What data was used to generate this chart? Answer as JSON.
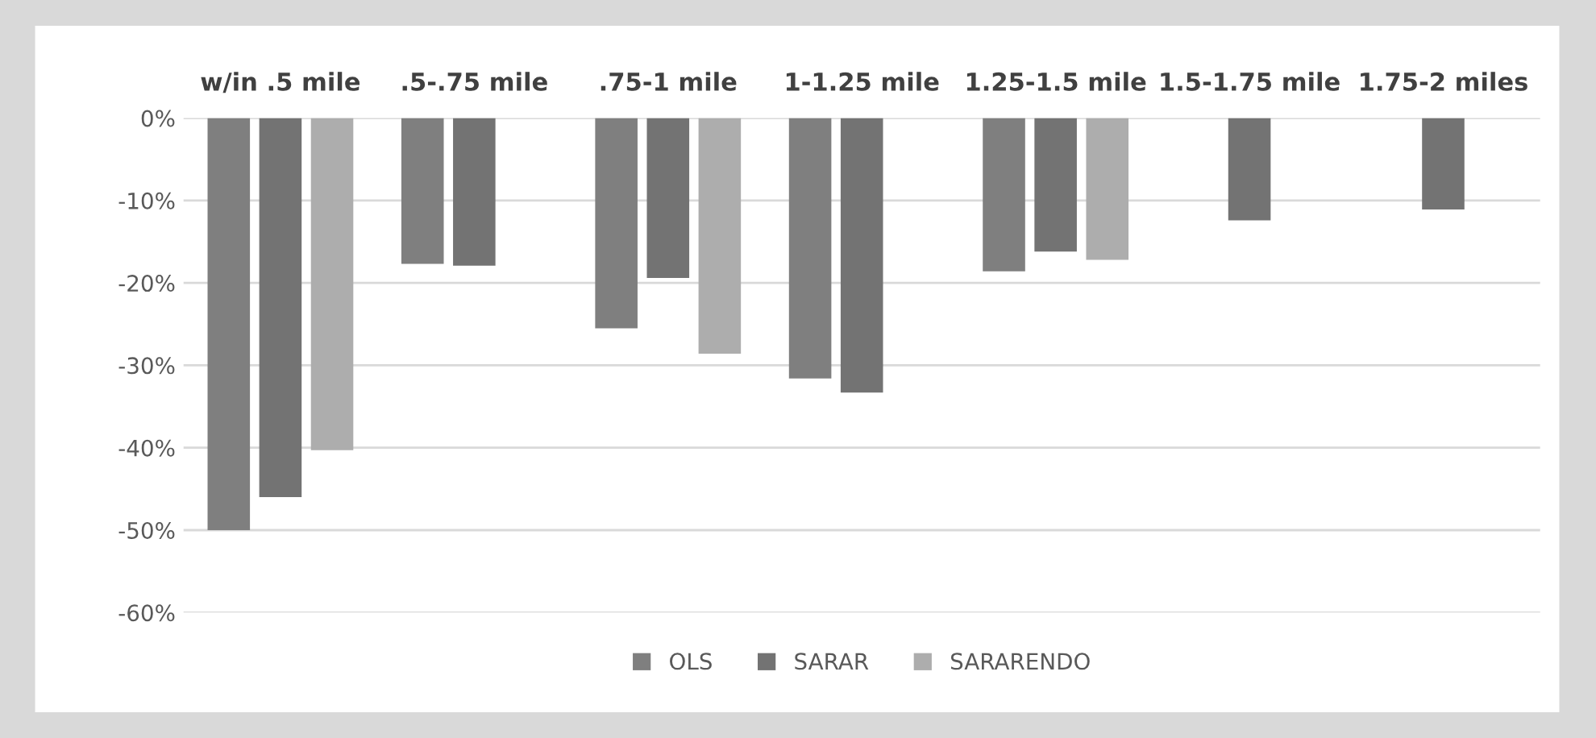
{
  "chart_data": {
    "type": "bar",
    "categories": [
      "w/in .5 mile",
      ".5-.75 mile",
      ".75-1 mile",
      "1-1.25 mile",
      "1.25-1.5 mile",
      "1.5-1.75 mile",
      "1.75-2 miles"
    ],
    "series": [
      {
        "name": "OLS",
        "color": "#7f7f7f",
        "values": [
          -50.0,
          -17.7,
          -25.5,
          -31.6,
          -18.6,
          null,
          null
        ]
      },
      {
        "name": "SARAR",
        "color": "#737373",
        "values": [
          -46.0,
          -17.9,
          -19.4,
          -33.3,
          -16.2,
          -12.4,
          -11.1
        ]
      },
      {
        "name": "SARARENDO",
        "color": "#adadad",
        "values": [
          -40.3,
          null,
          -28.6,
          null,
          -17.2,
          null,
          null
        ]
      }
    ],
    "ylim": [
      -60,
      0
    ],
    "yticks": [
      {
        "value": 0,
        "label": "0%"
      },
      {
        "value": -10,
        "label": "-10%"
      },
      {
        "value": -20,
        "label": "-20%"
      },
      {
        "value": -30,
        "label": "-30%"
      },
      {
        "value": -40,
        "label": "-40%"
      },
      {
        "value": -50,
        "label": "-50%"
      },
      {
        "value": -60,
        "label": "-60%"
      }
    ],
    "grid": "y",
    "legend": "bottom"
  }
}
